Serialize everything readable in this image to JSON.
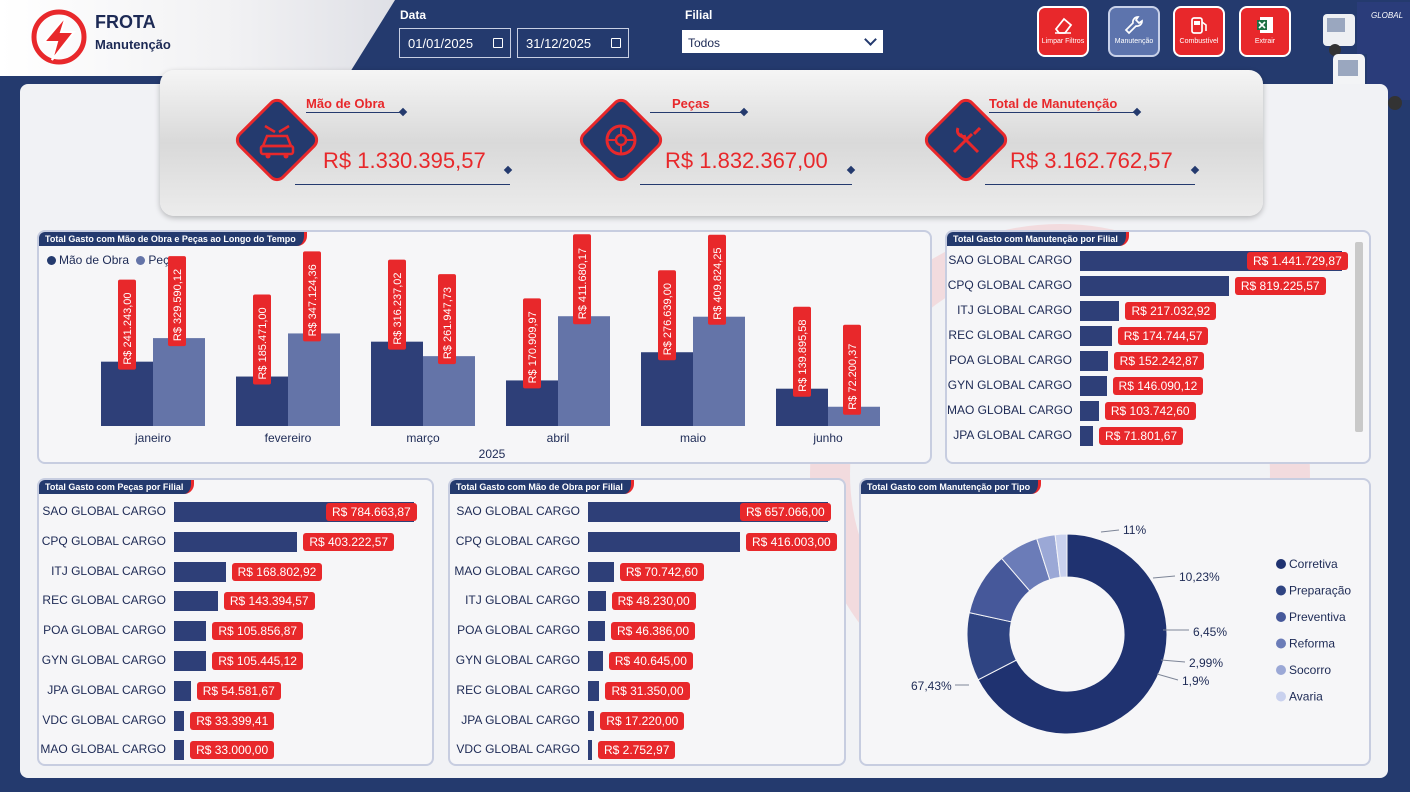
{
  "header": {
    "title": "FROTA",
    "subtitle": "Manutenção",
    "date_label": "Data",
    "date_start": "01/01/2025",
    "date_end": "31/12/2025",
    "branch_label": "Filial",
    "branch_value": "Todos",
    "buttons": [
      {
        "label": "Limpar Filtros",
        "icon": "eraser-icon"
      },
      {
        "label": "Manutenção",
        "icon": "wrench-icon"
      },
      {
        "label": "Combustível",
        "icon": "fuel-pump-icon"
      },
      {
        "label": "Extrair",
        "icon": "excel-icon"
      }
    ],
    "truck_brand": "GLOBAL"
  },
  "kpis": [
    {
      "label": "Mão de Obra",
      "value": "R$ 1.330.395,57",
      "icon": "car-service-icon"
    },
    {
      "label": "Peças",
      "value": "R$ 1.832.367,00",
      "icon": "tire-icon"
    },
    {
      "label": "Total de Manutenção",
      "value": "R$ 3.162.762,57",
      "icon": "tools-icon"
    }
  ],
  "colors": {
    "accent": "#e8282b",
    "navy": "#243a6e",
    "bar_dark": "#2e3f78",
    "bar_light": "#6474a8"
  },
  "chart_data": [
    {
      "type": "bar",
      "title": "Total Gasto com Mão de Obra e Peças ao Longo do Tempo",
      "xlabel": "2025",
      "categories": [
        "janeiro",
        "fevereiro",
        "março",
        "abril",
        "maio",
        "junho"
      ],
      "series": [
        {
          "name": "Mão de Obra",
          "values": [
            241243.0,
            185471.0,
            316237.02,
            170909.97,
            276639.0,
            139895.58
          ],
          "labels": [
            "R$ 241.243,00",
            "R$ 185.471,00",
            "R$ 316.237,02",
            "R$ 170.909,97",
            "R$ 276.639,00",
            "R$ 139.895,58"
          ]
        },
        {
          "name": "Peças",
          "values": [
            329590.12,
            347124.36,
            261947.73,
            411680.17,
            409824.25,
            72200.37
          ],
          "labels": [
            "R$ 329.590,12",
            "R$ 347.124,36",
            "R$ 261.947,73",
            "R$ 411.680,17",
            "R$ 409.824,25",
            "R$ 72.200,37"
          ]
        }
      ],
      "legend": "top-left"
    },
    {
      "type": "bar",
      "orientation": "horizontal",
      "title": "Total Gasto com Manutenção por Filial",
      "categories": [
        "SAO GLOBAL CARGO",
        "CPQ GLOBAL CARGO",
        "ITJ GLOBAL CARGO",
        "REC GLOBAL CARGO",
        "POA GLOBAL CARGO",
        "GYN GLOBAL CARGO",
        "MAO GLOBAL CARGO",
        "JPA GLOBAL CARGO"
      ],
      "values": [
        1441729.87,
        819225.57,
        217032.92,
        174744.57,
        152242.87,
        146090.12,
        103742.6,
        71801.67
      ],
      "labels": [
        "R$ 1.441.729,87",
        "R$ 819.225,57",
        "R$ 217.032,92",
        "R$ 174.744,57",
        "R$ 152.242,87",
        "R$ 146.090,12",
        "R$ 103.742,60",
        "R$ 71.801,67"
      ]
    },
    {
      "type": "bar",
      "orientation": "horizontal",
      "title": "Total Gasto com Peças por Filial",
      "categories": [
        "SAO GLOBAL CARGO",
        "CPQ GLOBAL CARGO",
        "ITJ GLOBAL CARGO",
        "REC GLOBAL CARGO",
        "POA GLOBAL CARGO",
        "GYN GLOBAL CARGO",
        "JPA GLOBAL CARGO",
        "VDC GLOBAL CARGO",
        "MAO GLOBAL CARGO"
      ],
      "values": [
        784663.87,
        403222.57,
        168802.92,
        143394.57,
        105856.87,
        105445.12,
        54581.67,
        33399.41,
        33000.0
      ],
      "labels": [
        "R$ 784.663,87",
        "R$ 403.222,57",
        "R$ 168.802,92",
        "R$ 143.394,57",
        "R$ 105.856,87",
        "R$ 105.445,12",
        "R$ 54.581,67",
        "R$ 33.399,41",
        "R$ 33.000,00"
      ]
    },
    {
      "type": "bar",
      "orientation": "horizontal",
      "title": "Total Gasto com Mão de Obra por Filial",
      "categories": [
        "SAO GLOBAL CARGO",
        "CPQ GLOBAL CARGO",
        "MAO GLOBAL CARGO",
        "ITJ GLOBAL CARGO",
        "POA GLOBAL CARGO",
        "GYN GLOBAL CARGO",
        "REC GLOBAL CARGO",
        "JPA GLOBAL CARGO",
        "VDC GLOBAL CARGO"
      ],
      "values": [
        657066.0,
        416003.0,
        70742.6,
        48230.0,
        46386.0,
        40645.0,
        31350.0,
        17220.0,
        2752.97
      ],
      "labels": [
        "R$ 657.066,00",
        "R$ 416.003,00",
        "R$ 70.742,60",
        "R$ 48.230,00",
        "R$ 46.386,00",
        "R$ 40.645,00",
        "R$ 31.350,00",
        "R$ 17.220,00",
        "R$ 2.752,97"
      ]
    },
    {
      "type": "pie",
      "variant": "donut",
      "title": "Total Gasto com Manutenção por Tipo",
      "categories": [
        "Corretiva",
        "Preparação",
        "Preventiva",
        "Reforma",
        "Socorro",
        "Avaria"
      ],
      "values": [
        67.43,
        11,
        10.23,
        6.45,
        2.99,
        1.9
      ],
      "labels": [
        "67,43%",
        "11%",
        "10,23%",
        "6,45%",
        "2,99%",
        "1,9%"
      ],
      "colors": [
        "#1f3270",
        "#2f4482",
        "#46589a",
        "#6b7cb8",
        "#9ba8d6",
        "#c9d1ee"
      ],
      "legend": "right"
    }
  ]
}
